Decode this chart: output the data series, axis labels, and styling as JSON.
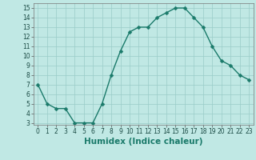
{
  "x": [
    0,
    1,
    2,
    3,
    4,
    5,
    6,
    7,
    8,
    9,
    10,
    11,
    12,
    13,
    14,
    15,
    16,
    17,
    18,
    19,
    20,
    21,
    22,
    23
  ],
  "y": [
    7,
    5,
    4.5,
    4.5,
    3,
    3,
    3,
    5,
    8,
    10.5,
    12.5,
    13,
    13,
    14,
    14.5,
    15,
    15,
    14,
    13,
    11,
    9.5,
    9,
    8,
    7.5
  ],
  "line_color": "#1a7a6a",
  "marker_color": "#1a7a6a",
  "bg_color": "#c0e8e4",
  "grid_color": "#9accc8",
  "xlabel": "Humidex (Indice chaleur)",
  "xlim": [
    -0.5,
    23.5
  ],
  "ylim": [
    2.8,
    15.5
  ],
  "yticks": [
    3,
    4,
    5,
    6,
    7,
    8,
    9,
    10,
    11,
    12,
    13,
    14,
    15
  ],
  "xticks": [
    0,
    1,
    2,
    3,
    4,
    5,
    6,
    7,
    8,
    9,
    10,
    11,
    12,
    13,
    14,
    15,
    16,
    17,
    18,
    19,
    20,
    21,
    22,
    23
  ],
  "tick_fontsize": 5.5,
  "xlabel_fontsize": 7.5,
  "marker_size": 2.5,
  "linewidth": 1.0
}
